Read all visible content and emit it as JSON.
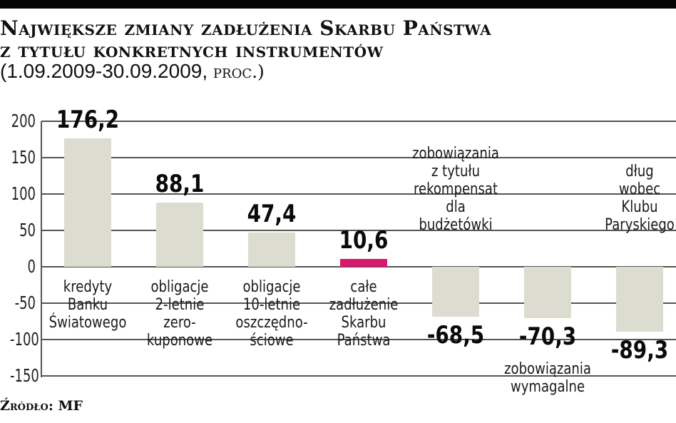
{
  "header": {
    "title_line1": "Największe zmiany zadłużenia Skarbu Państwa",
    "title_line2": "z tytułu konkretnych instrumentów",
    "subtitle_dates": "(1.09.2009-30.09.2009, ",
    "subtitle_unit": "proc.)"
  },
  "footer": {
    "source": "Źródło: MF"
  },
  "colors": {
    "bar": "#dcdcd0",
    "highlight": "#d6196e",
    "grid": "#555555"
  },
  "chart_data": {
    "type": "bar",
    "title": "Największe zmiany zadłużenia Skarbu Państwa z tytułu konkretnych instrumentów",
    "subtitle": "(1.09.2009-30.09.2009, proc.)",
    "xlabel": "",
    "ylabel": "proc.",
    "ylim": [
      -150,
      200
    ],
    "yticks": [
      200,
      150,
      100,
      50,
      0,
      -50,
      -100,
      -150
    ],
    "ytick_labels": [
      "200",
      "150",
      "100",
      "50",
      "0",
      "-50",
      "-100",
      "-150"
    ],
    "grid": true,
    "categories": [
      "kredyty Banku Światowego",
      "obligacje 2-letnie zerokuponowe",
      "obligacje 10-letnie oszczędnościowe",
      "całe zadłużenie Skarbu Państwa",
      "zobowiązania z tytułu rekompensat dla budżetówki",
      "zobowiązania wymagalne",
      "dług wobec Klubu Paryskiego"
    ],
    "category_labels": [
      "kredyty\nBanku\nŚwiatowego",
      "obligacje\n2-letnie\nzero-\nkuponowe",
      "obligacje\n10-letnie\noszczędno-\nściowe",
      "całe\nzadłużenie\nSkarbu\nPaństwa",
      "zobowiązania\nz tytułu\nrekompensat\ndla\nbudżetówki",
      "zobowiązania\nwymagalne",
      "dług\nwobec\nKlubu\nParyskiego"
    ],
    "values": [
      176.2,
      88.1,
      47.4,
      10.6,
      -68.5,
      -70.3,
      -89.3
    ],
    "value_labels": [
      "176,2",
      "88,1",
      "47,4",
      "10,6",
      "-68,5",
      "-70,3",
      "-89,3"
    ],
    "highlighted_index": 3,
    "source": "Źródło: MF"
  }
}
